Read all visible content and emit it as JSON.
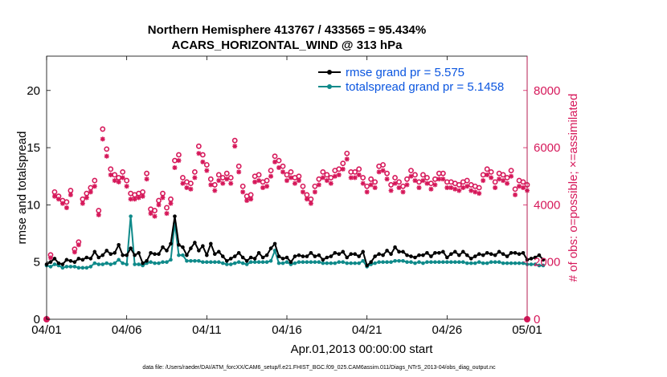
{
  "chart_data": {
    "type": "line",
    "title": "Northern Hemisphere 413767 / 433565 = 95.434%",
    "subtitle": "ACARS_HORIZONTAL_WIND @ 313 hPa",
    "xlabel": "Apr.01,2013 00:00:00 start",
    "ylabel": "rmse and totalspread",
    "ylabel_right": "# of obs: o=possible; ×=assimilated",
    "footnote": "data file: /Users/raeder/DAI/ATM_forcXX/CAM6_setup/f.e21.FHIST_BGC.f09_025.CAM6assim.011/Diags_NTrS_2013-04/obs_diag_output.nc",
    "xlim": [
      0,
      30
    ],
    "ylim": [
      0,
      23
    ],
    "ylim_right": [
      0,
      9200
    ],
    "x_ticks": [
      0,
      5,
      10,
      15,
      20,
      25,
      30
    ],
    "x_tick_labels": [
      "04/01",
      "04/06",
      "04/11",
      "04/16",
      "04/21",
      "04/26",
      "05/01"
    ],
    "y_ticks": [
      0,
      5,
      10,
      15,
      20
    ],
    "y_tick_labels": [
      "0",
      "5",
      "10",
      "15",
      "20"
    ],
    "y_ticks_right": [
      0,
      2000,
      4000,
      6000,
      8000
    ],
    "y_tick_labels_right": [
      "0",
      "2000",
      "4000",
      "6000",
      "8000"
    ],
    "legend_position": "top-right",
    "colors": {
      "rmse": "#000000",
      "spread": "#0f8a8a",
      "obs": "#d6185a",
      "legend_text": "#0b56e0"
    },
    "series": [
      {
        "name": "rmse grand pr = 5.575",
        "color": "#000000",
        "x_start": 0,
        "x_step": 0.25,
        "values": [
          4.8,
          5.0,
          5.3,
          4.9,
          4.8,
          5.2,
          5.1,
          5.0,
          5.3,
          5.2,
          5.4,
          5.3,
          5.9,
          5.4,
          5.6,
          6.0,
          5.7,
          5.8,
          6.5,
          5.6,
          5.6,
          6.2,
          5.6,
          5.8,
          4.9,
          5.1,
          5.8,
          5.7,
          5.7,
          6.3,
          6.0,
          6.6,
          9.0,
          6.5,
          6.3,
          5.6,
          6.2,
          6.7,
          6.0,
          6.4,
          5.6,
          6.6,
          5.7,
          5.9,
          5.5,
          5.1,
          5.3,
          5.5,
          5.8,
          5.4,
          5.1,
          5.4,
          5.3,
          5.8,
          5.4,
          5.6,
          6.2,
          6.6,
          5.5,
          5.3,
          5.4,
          5.0,
          5.5,
          5.6,
          5.5,
          5.5,
          5.8,
          5.5,
          5.6,
          5.2,
          5.4,
          5.5,
          5.8,
          5.7,
          5.9,
          5.4,
          5.7,
          5.7,
          5.5,
          5.9,
          4.7,
          5.0,
          5.5,
          5.7,
          5.6,
          6.0,
          5.7,
          6.3,
          5.9,
          5.9,
          5.6,
          5.5,
          5.4,
          5.6,
          5.6,
          5.8,
          5.5,
          5.8,
          5.8,
          5.9,
          5.4,
          5.7,
          5.9,
          5.6,
          5.9,
          5.6,
          5.3,
          5.5,
          5.7,
          5.6,
          5.8,
          5.7,
          5.6,
          5.9,
          5.7,
          5.5,
          5.8,
          5.8,
          5.7,
          5.8,
          5.2,
          5.3,
          5.4,
          5.6,
          5.2
        ]
      },
      {
        "name": "totalspread grand pr = 5.1458",
        "color": "#0f8a8a",
        "x_start": 0,
        "x_step": 0.25,
        "values": [
          4.7,
          4.6,
          4.8,
          4.7,
          4.5,
          4.6,
          4.6,
          4.6,
          4.5,
          4.5,
          4.5,
          4.6,
          4.9,
          4.8,
          4.8,
          4.9,
          4.8,
          4.9,
          5.2,
          4.9,
          4.8,
          9.0,
          4.8,
          4.8,
          4.7,
          4.9,
          5.0,
          4.9,
          4.9,
          5.0,
          5.0,
          5.2,
          8.4,
          5.6,
          5.6,
          5.1,
          5.1,
          5.1,
          5.1,
          5.0,
          5.0,
          5.0,
          5.0,
          5.0,
          4.9,
          4.8,
          4.8,
          4.9,
          5.0,
          4.9,
          4.8,
          5.0,
          5.0,
          5.0,
          5.0,
          5.0,
          5.1,
          6.0,
          4.9,
          4.9,
          5.0,
          4.8,
          4.9,
          5.0,
          5.0,
          5.0,
          5.0,
          5.0,
          5.0,
          4.9,
          4.9,
          4.9,
          4.9,
          5.0,
          5.0,
          4.9,
          4.9,
          4.9,
          4.9,
          5.1,
          4.6,
          4.8,
          4.9,
          5.0,
          5.0,
          5.0,
          5.0,
          5.1,
          5.1,
          5.1,
          5.0,
          5.0,
          4.9,
          5.0,
          4.9,
          5.0,
          5.0,
          5.0,
          5.0,
          5.0,
          5.0,
          5.0,
          5.0,
          5.0,
          5.0,
          4.9,
          4.9,
          4.9,
          5.0,
          4.9,
          4.9,
          5.0,
          5.0,
          5.0,
          4.9,
          4.9,
          4.9,
          4.9,
          4.9,
          4.9,
          4.8,
          4.8,
          4.8,
          4.7,
          4.7
        ]
      }
    ],
    "obs_possible": {
      "name": "possible",
      "x_start": 0.25,
      "x_step": 0.25,
      "values": [
        2250,
        4450,
        4300,
        4150,
        4100,
        4500,
        2450,
        2700,
        4200,
        4400,
        4600,
        4850,
        3800,
        6650,
        5950,
        5250,
        5050,
        4950,
        5150,
        4850,
        4400,
        4350,
        4400,
        4450,
        5100,
        3850,
        3800,
        4150,
        4400,
        3900,
        4200,
        5550,
        5750,
        4950,
        4800,
        4750,
        5150,
        6050,
        5750,
        5400,
        4900,
        4700,
        5050,
        4950,
        5100,
        4950,
        6250,
        5350,
        4650,
        4300,
        4350,
        5000,
        5050,
        4800,
        4850,
        5200,
        5700,
        5550,
        5350,
        5050,
        5150,
        4950,
        5000,
        4650,
        4350,
        4200,
        4650,
        4900,
        5150,
        5050,
        4950,
        5200,
        5250,
        5450,
        5800,
        5150,
        5150,
        5250,
        4950,
        4650,
        4900,
        4800,
        5350,
        5400,
        5100,
        4700,
        4950,
        4800,
        4650,
        4900,
        5200,
        5050,
        4800,
        5050,
        4950,
        4750,
        4900,
        5100,
        5100,
        4800,
        4800,
        4750,
        4700,
        4800,
        4850,
        4700,
        4650,
        4600,
        5050,
        5250,
        5150,
        4800,
        5100,
        5050,
        4950,
        5200,
        4550,
        4850,
        4800,
        4700
      ]
    },
    "obs_assimilated": {
      "name": "assimilated",
      "x_start": 0.25,
      "x_step": 0.25,
      "values": [
        2150,
        4300,
        4200,
        4050,
        3900,
        4350,
        2350,
        2600,
        4050,
        4250,
        4450,
        4650,
        3650,
        6300,
        5700,
        5050,
        4850,
        4800,
        4950,
        4650,
        4200,
        4200,
        4250,
        4300,
        4900,
        3700,
        3600,
        4000,
        4250,
        3700,
        4050,
        5300,
        5550,
        4750,
        4600,
        4550,
        4950,
        5800,
        5500,
        5200,
        4700,
        4500,
        4850,
        4750,
        4900,
        4750,
        6050,
        5150,
        4450,
        4150,
        4200,
        4800,
        4850,
        4600,
        4650,
        5000,
        5500,
        5300,
        5150,
        4850,
        4950,
        4750,
        4850,
        4450,
        4200,
        4050,
        4450,
        4700,
        4950,
        4850,
        4750,
        5000,
        5050,
        5250,
        5600,
        4950,
        4950,
        5050,
        4750,
        4450,
        4700,
        4600,
        5150,
        5200,
        4900,
        4500,
        4750,
        4600,
        4450,
        4700,
        5000,
        4850,
        4600,
        4850,
        4750,
        4550,
        4700,
        4900,
        4900,
        4600,
        4600,
        4550,
        4500,
        4600,
        4650,
        4500,
        4450,
        4400,
        4850,
        5050,
        4950,
        4600,
        4900,
        4850,
        4750,
        5000,
        4350,
        4650,
        4600,
        4500
      ]
    }
  }
}
